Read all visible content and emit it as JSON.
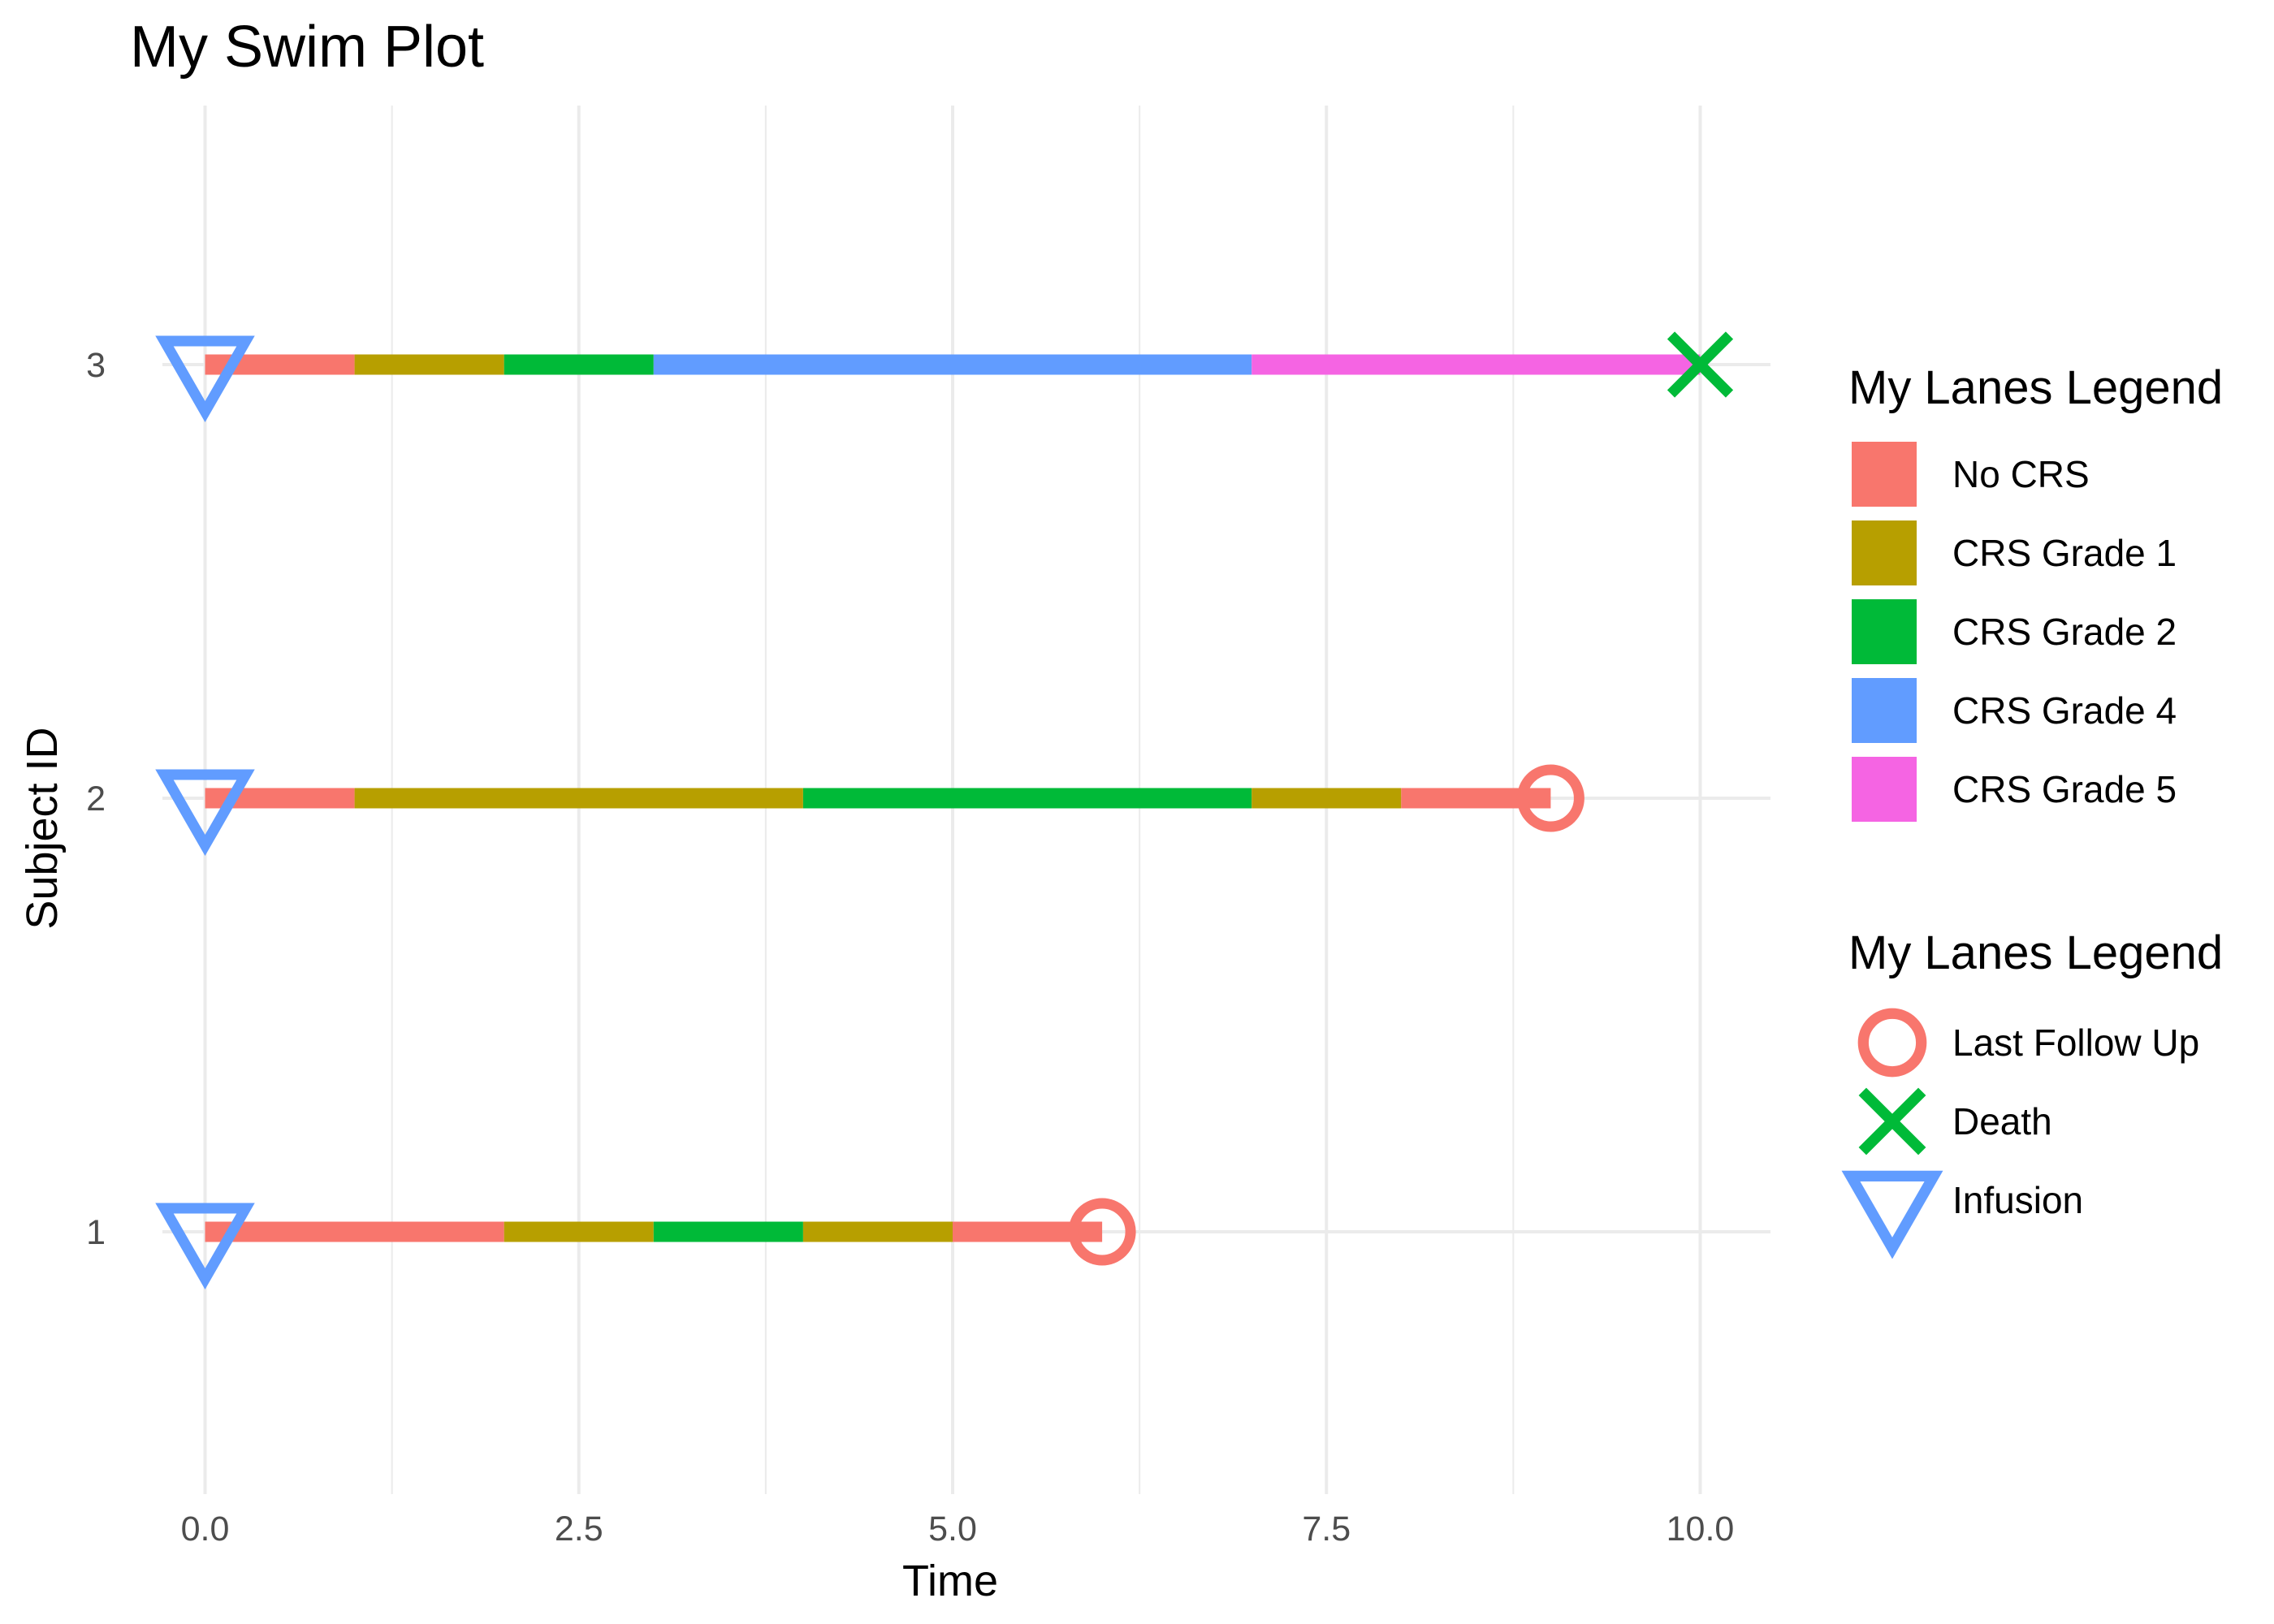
{
  "chart_data": {
    "type": "swimmer",
    "title": "My Swim Plot",
    "xlabel": "Time",
    "ylabel": "Subject ID",
    "xlim": [
      -0.5,
      10.5
    ],
    "ylim": [
      0.4,
      3.6
    ],
    "x_ticks": [
      0.0,
      2.5,
      5.0,
      7.5,
      10.0
    ],
    "x_tick_labels": [
      "0.0",
      "2.5",
      "5.0",
      "7.5",
      "10.0"
    ],
    "y_ticks": [
      1,
      2,
      3
    ],
    "y_tick_labels": [
      "1",
      "2",
      "3"
    ],
    "grid": true,
    "legend_position": "right",
    "lane_legend": {
      "title": "My Lanes Legend",
      "items": [
        {
          "key": "no_crs",
          "label": "No CRS",
          "color": "#F8766D"
        },
        {
          "key": "g1",
          "label": "CRS Grade 1",
          "color": "#B79F00"
        },
        {
          "key": "g2",
          "label": "CRS Grade 2",
          "color": "#00BA38"
        },
        {
          "key": "g4",
          "label": "CRS Grade 4",
          "color": "#619CFF"
        },
        {
          "key": "g5",
          "label": "CRS Grade 5",
          "color": "#F564E3"
        }
      ]
    },
    "marker_legend": {
      "title": "My Lanes Legend",
      "items": [
        {
          "key": "lfu",
          "label": "Last Follow Up",
          "shape": "circle",
          "color": "#F8766D"
        },
        {
          "key": "death",
          "label": "Death",
          "shape": "x",
          "color": "#00BA38"
        },
        {
          "key": "infusion",
          "label": "Infusion",
          "shape": "triangle-down",
          "color": "#619CFF"
        }
      ]
    },
    "subjects": [
      {
        "id": 1,
        "segments": [
          {
            "start": 0,
            "end": 2,
            "state": "no_crs"
          },
          {
            "start": 2,
            "end": 3,
            "state": "g1"
          },
          {
            "start": 3,
            "end": 4,
            "state": "g2"
          },
          {
            "start": 4,
            "end": 5,
            "state": "g1"
          },
          {
            "start": 5,
            "end": 6,
            "state": "no_crs"
          }
        ],
        "markers": [
          {
            "x": 0,
            "type": "infusion"
          },
          {
            "x": 6,
            "type": "lfu"
          }
        ]
      },
      {
        "id": 2,
        "segments": [
          {
            "start": 0,
            "end": 1,
            "state": "no_crs"
          },
          {
            "start": 1,
            "end": 4,
            "state": "g1"
          },
          {
            "start": 4,
            "end": 7,
            "state": "g2"
          },
          {
            "start": 7,
            "end": 8,
            "state": "g1"
          },
          {
            "start": 8,
            "end": 9,
            "state": "no_crs"
          }
        ],
        "markers": [
          {
            "x": 0,
            "type": "infusion"
          },
          {
            "x": 9,
            "type": "lfu"
          }
        ]
      },
      {
        "id": 3,
        "segments": [
          {
            "start": 0,
            "end": 1,
            "state": "no_crs"
          },
          {
            "start": 1,
            "end": 2,
            "state": "g1"
          },
          {
            "start": 2,
            "end": 3,
            "state": "g2"
          },
          {
            "start": 3,
            "end": 7,
            "state": "g4"
          },
          {
            "start": 7,
            "end": 10,
            "state": "g5"
          }
        ],
        "markers": [
          {
            "x": 0,
            "type": "infusion"
          },
          {
            "x": 10,
            "type": "death"
          }
        ]
      }
    ]
  }
}
